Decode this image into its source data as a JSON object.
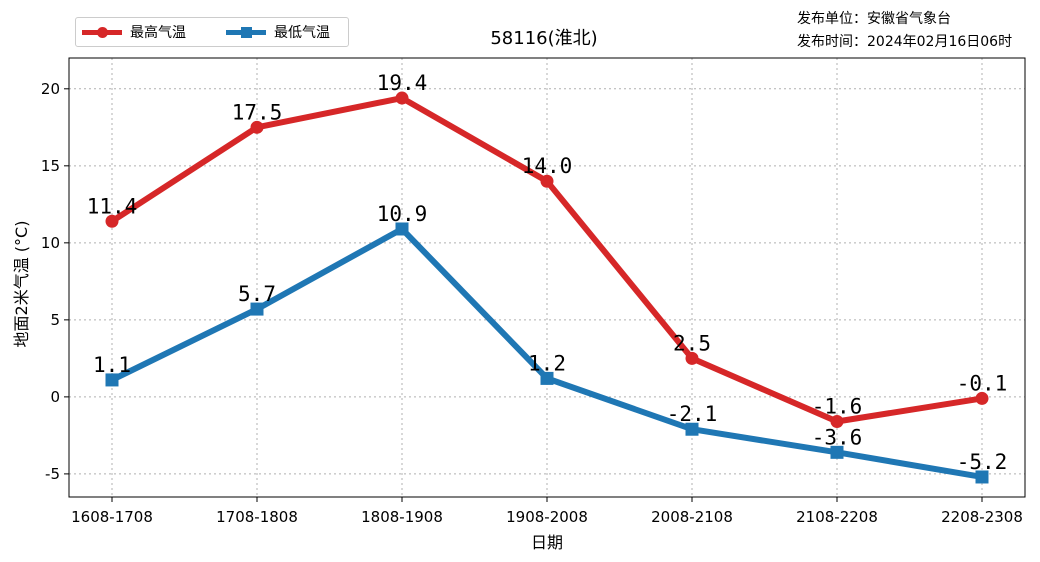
{
  "publisher_line": "发布单位：安徽省气象台",
  "issue_time_line": "发布时间：2024年02月16日06时",
  "chart_data": {
    "type": "line",
    "title": "58116(淮北)",
    "xlabel": "日期",
    "ylabel": "地面2米气温 (°C)",
    "categories": [
      "1608-1708",
      "1708-1808",
      "1808-1908",
      "1908-2008",
      "2008-2108",
      "2108-2208",
      "2208-2308"
    ],
    "ylim": [
      -6.5,
      22
    ],
    "yticks": [
      -5,
      0,
      5,
      10,
      15,
      20
    ],
    "grid": true,
    "legend_position": "top-left",
    "series": [
      {
        "name": "最高气温",
        "color": "#d62728",
        "marker": "circle",
        "values": [
          11.4,
          17.5,
          19.4,
          14.0,
          2.5,
          -1.6,
          -0.1
        ],
        "labels": [
          "11.4",
          "17.5",
          "19.4",
          "14.0",
          "2.5",
          "-1.6",
          "-0.1"
        ]
      },
      {
        "name": "最低气温",
        "color": "#1f77b4",
        "marker": "square",
        "values": [
          1.1,
          5.7,
          10.9,
          1.2,
          -2.1,
          -3.6,
          -5.2
        ],
        "labels": [
          "1.1",
          "5.7",
          "10.9",
          "1.2",
          "-2.1",
          "-3.6",
          "-5.2"
        ]
      }
    ]
  }
}
